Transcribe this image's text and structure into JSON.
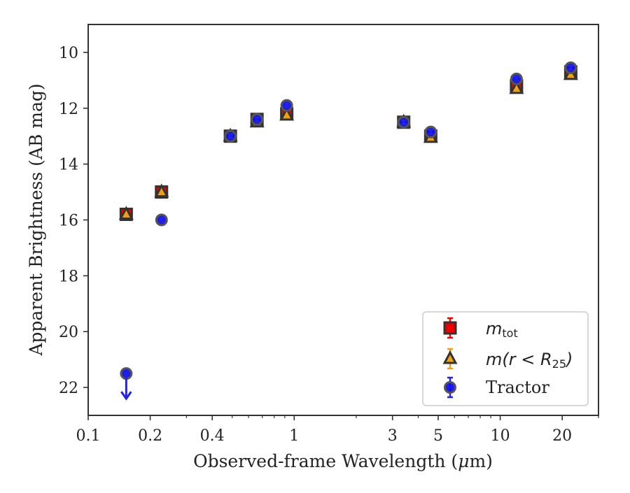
{
  "chart_data": {
    "type": "scatter",
    "title": "",
    "xlabel_prefix": "Observed-frame Wavelength (",
    "xlabel_mu": "μ",
    "xlabel_suffix": "m)",
    "ylabel": "Apparent Brightness (AB mag)",
    "x_scale": "log",
    "xlim": [
      0.1,
      30
    ],
    "ylim": [
      23,
      9
    ],
    "y_inverted": true,
    "x_ticks": [
      0.1,
      0.2,
      0.4,
      1,
      3,
      5,
      10,
      20
    ],
    "x_tick_labels": [
      "0.1",
      "0.2",
      "0.4",
      "1",
      "3",
      "5",
      "10",
      "20"
    ],
    "y_ticks": [
      10,
      12,
      14,
      16,
      18,
      20,
      22
    ],
    "y_tick_labels": [
      "10",
      "12",
      "14",
      "16",
      "18",
      "20",
      "22"
    ],
    "grid": false,
    "legend_position": "lower-right",
    "series": [
      {
        "key": "mtot",
        "legend_main": "m",
        "legend_sub": "tot",
        "marker": "square",
        "color": "#ee0000",
        "error_color": "#ee0000",
        "x": [
          0.153,
          0.227,
          0.49,
          0.66,
          0.92,
          3.4,
          4.6,
          12,
          22
        ],
        "y": [
          15.8,
          15.0,
          13.0,
          12.4,
          12.2,
          12.5,
          13.0,
          11.2,
          10.7
        ]
      },
      {
        "key": "mr25",
        "legend_main": "m(r < R",
        "legend_sub": "25",
        "legend_close": ")",
        "marker": "triangle",
        "color": "#f0a010",
        "error_color": "#f0a010",
        "x": [
          0.153,
          0.227,
          0.49,
          0.66,
          0.92,
          3.4,
          4.6,
          12,
          22
        ],
        "y": [
          15.8,
          15.0,
          13.0,
          12.5,
          12.25,
          12.5,
          13.05,
          11.3,
          10.8
        ]
      },
      {
        "key": "tractor",
        "legend_label": "Tractor",
        "marker": "circle",
        "color": "#1010ee",
        "error_color": "#2222ee",
        "x": [
          0.153,
          0.227,
          0.49,
          0.66,
          0.92,
          3.4,
          4.6,
          12,
          22
        ],
        "y": [
          21.5,
          16.0,
          13.0,
          12.4,
          11.9,
          12.5,
          12.85,
          10.95,
          10.55
        ],
        "upper_limit_index": 0
      }
    ]
  }
}
